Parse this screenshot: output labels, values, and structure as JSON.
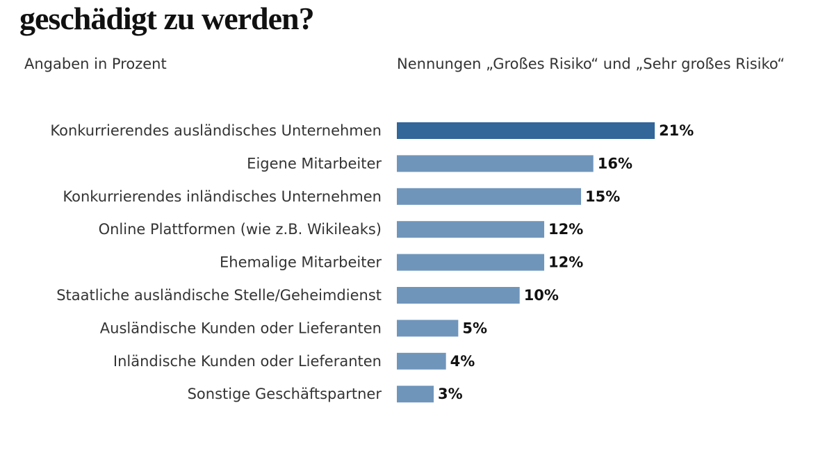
{
  "chart_data": {
    "type": "bar",
    "orientation": "horizontal",
    "title": "geschädigt zu werden?",
    "subtitle_left": "Angaben in Prozent",
    "subtitle_right": "Nennungen „Großes Risiko“ und „Sehr großes Risiko“",
    "categories": [
      "Konkurrierendes ausländisches Unternehmen",
      "Eigene Mitarbeiter",
      "Konkurrierendes inländisches Unternehmen",
      "Online Plattformen (wie z.B. Wikileaks)",
      "Ehemalige Mitarbeiter",
      "Staatliche ausländische Stelle/Geheimdienst",
      "Ausländische Kunden oder Lieferanten",
      "Inländische Kunden oder Lieferanten",
      "Sonstige Geschäftspartner"
    ],
    "values": [
      21,
      16,
      15,
      12,
      12,
      10,
      5,
      4,
      3
    ],
    "data_labels": [
      "21%",
      "16%",
      "15%",
      "12%",
      "12%",
      "10%",
      "5%",
      "4%",
      "3%"
    ],
    "unit": "%",
    "grid": false,
    "colors": {
      "highlight": "#336699",
      "default": "#6f95bb"
    }
  }
}
